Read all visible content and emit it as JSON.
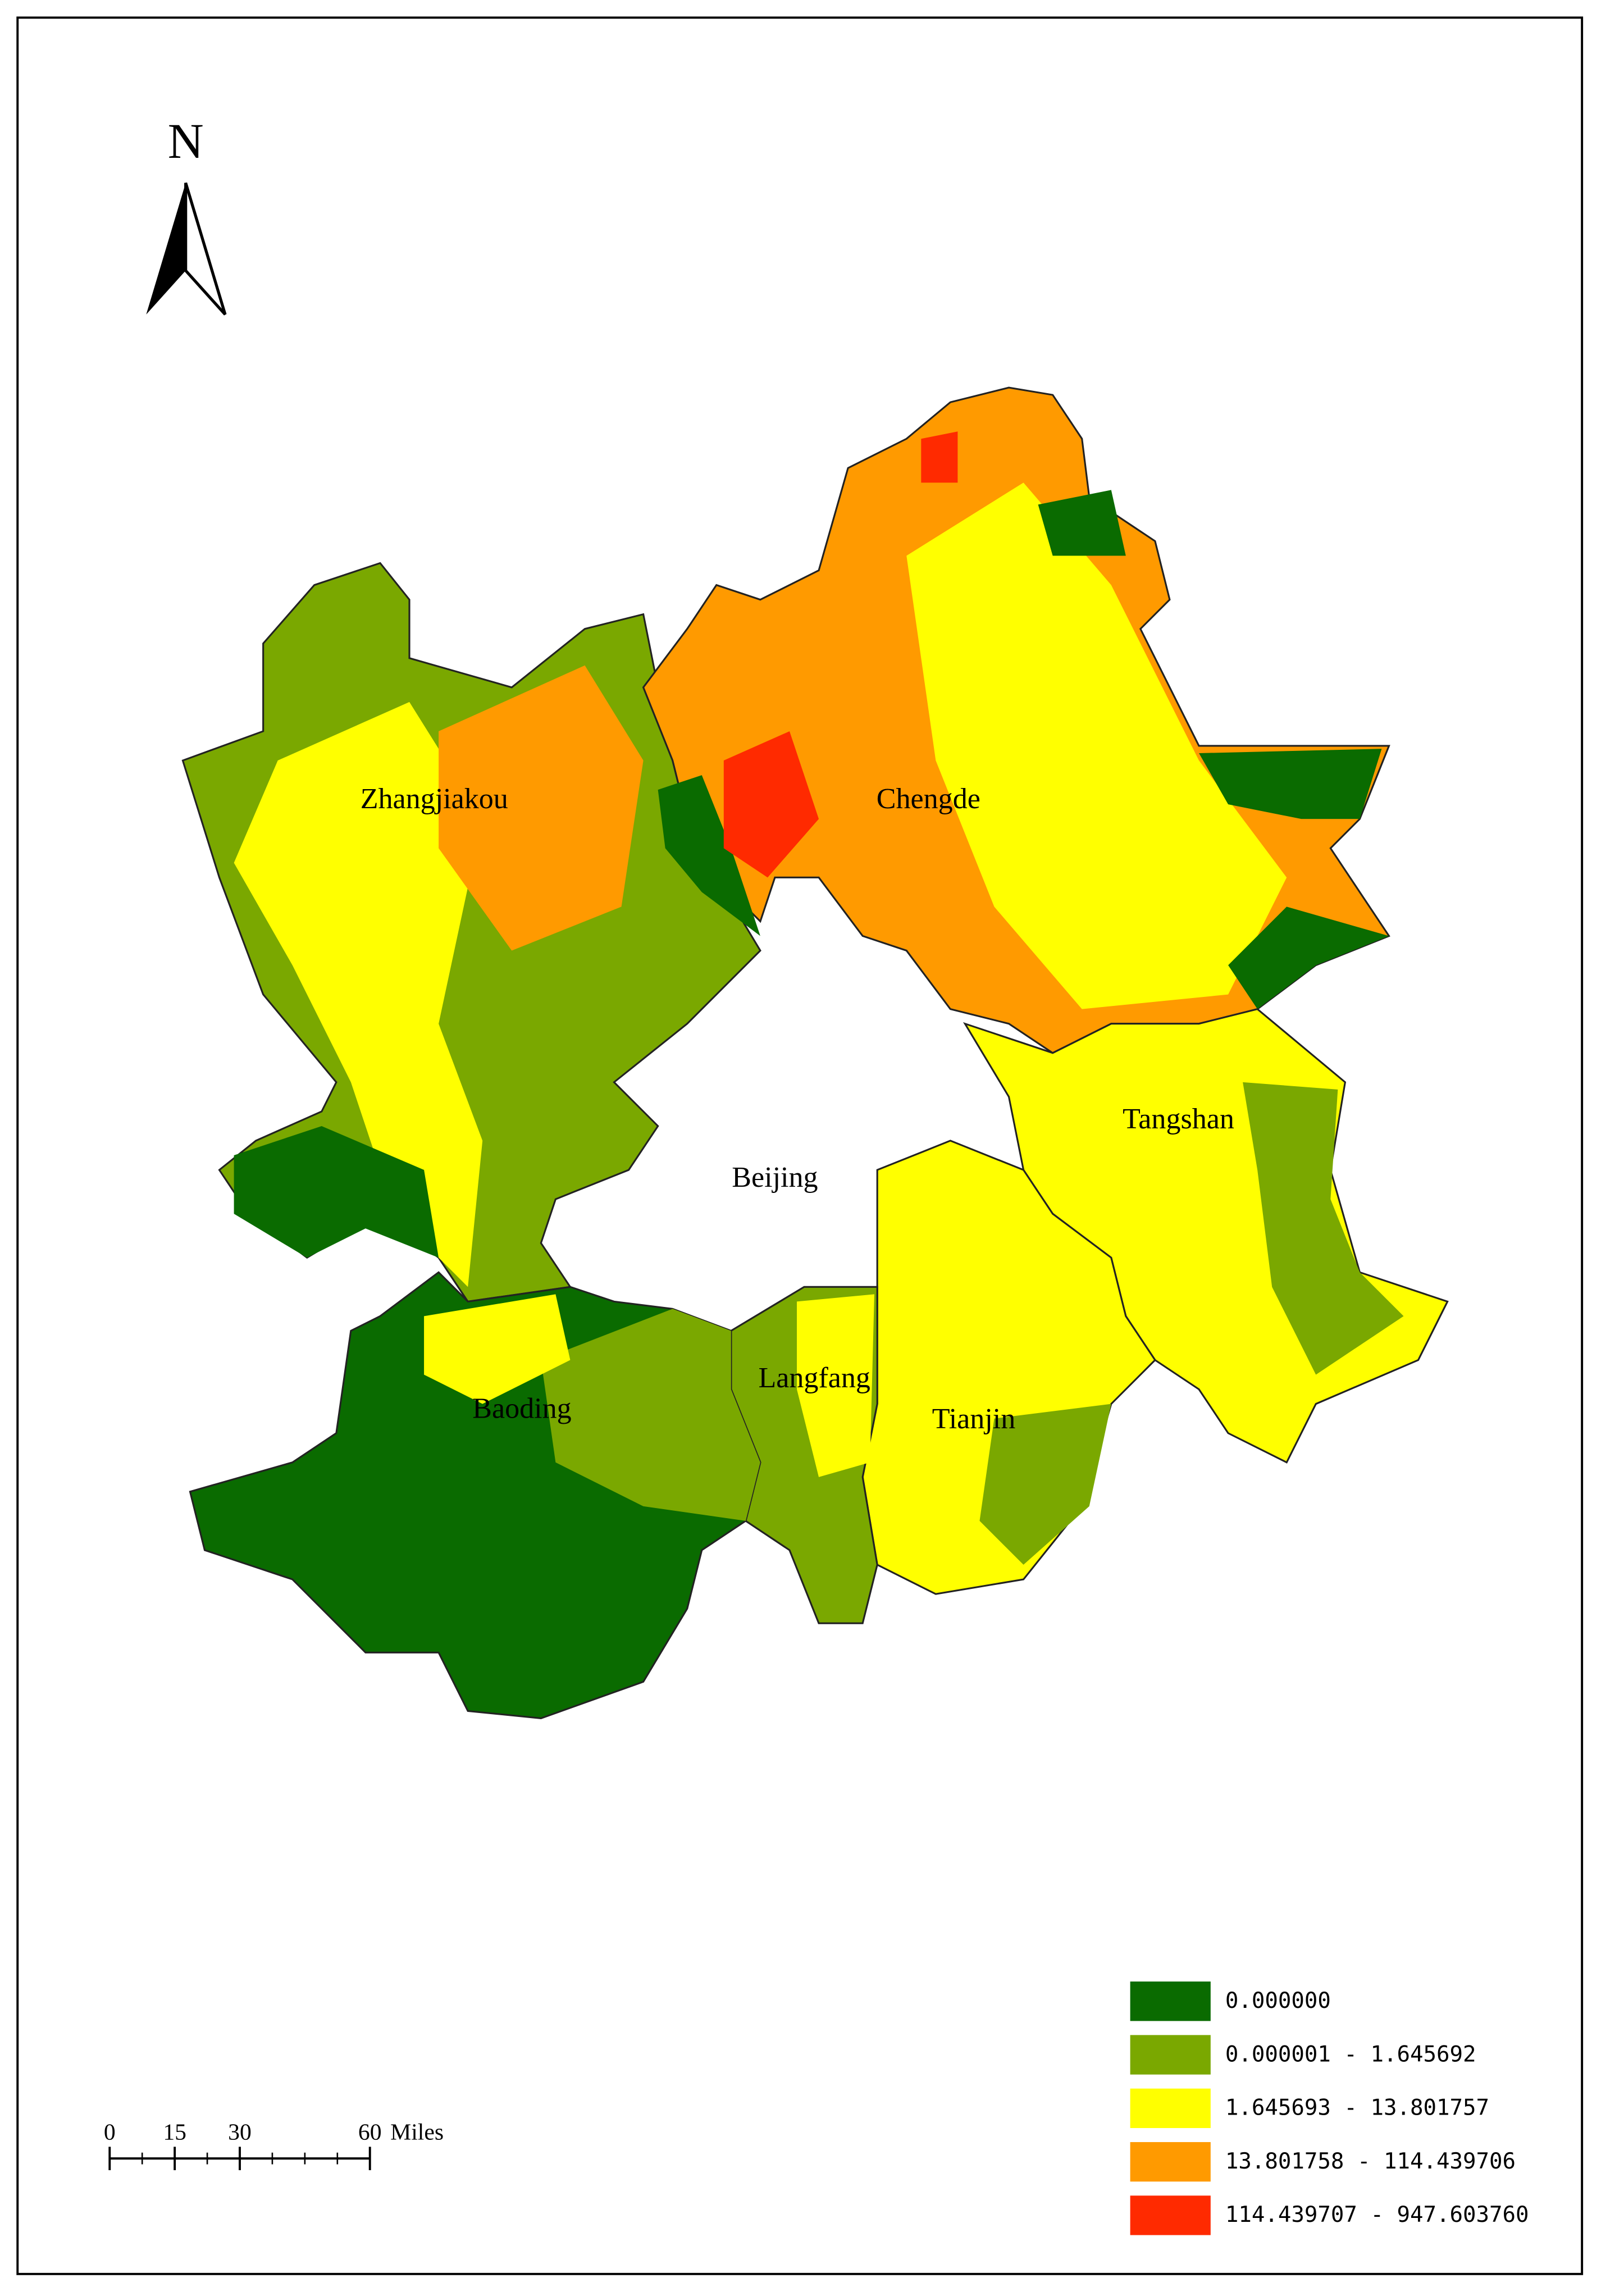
{
  "north": "N",
  "cities": [
    "Zhangjiakou",
    "Chengde",
    "Beijing",
    "Tangshan",
    "Langfang",
    "Tianjin",
    "Baoding"
  ],
  "legend": [
    {
      "label": "0.000000",
      "color": "#0a6b00"
    },
    {
      "label": "0.000001 - 1.645692",
      "color": "#7aa800"
    },
    {
      "label": "1.645693 - 13.801757",
      "color": "#ffff00"
    },
    {
      "label": "13.801758 - 114.439706",
      "color": "#ff9a00"
    },
    {
      "label": "114.439707 - 947.603760",
      "color": "#ff2a00"
    }
  ],
  "scale_bar": {
    "ticks": [
      0,
      15,
      30,
      60
    ],
    "unit": "Miles"
  }
}
